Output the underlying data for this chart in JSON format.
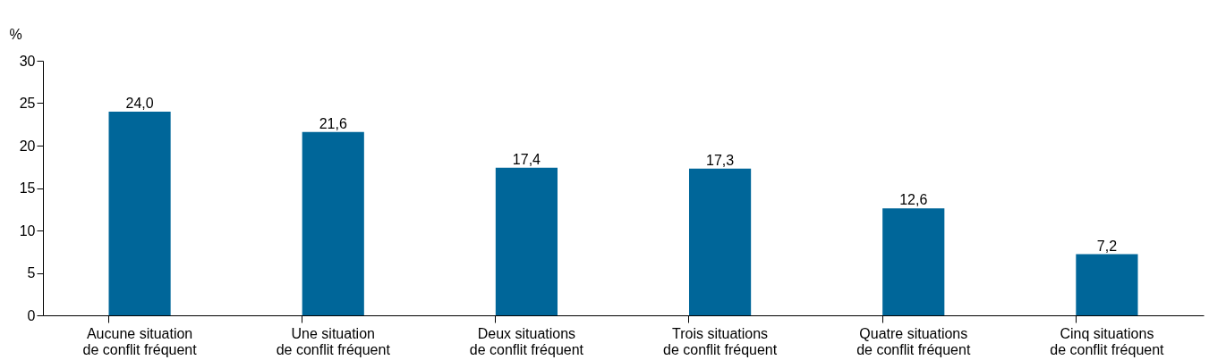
{
  "chart_data": {
    "type": "bar",
    "ylabel": "%",
    "categories": [
      "Aucune situation\nde conflit fréquent",
      "Une situation\nde conflit fréquent",
      "Deux situations\nde conflit fréquent",
      "Trois situations\nde conflit fréquent",
      "Quatre situations\nde conflit fréquent",
      "Cinq situations\nde conflit fréquent"
    ],
    "values": [
      24.0,
      21.6,
      17.4,
      17.3,
      12.6,
      7.2
    ],
    "value_labels": [
      "24,0",
      "21,6",
      "17,4",
      "17,3",
      "12,6",
      "7,2"
    ],
    "color": "#006699",
    "ylim": [
      0,
      30
    ],
    "yticks": [
      0,
      5,
      10,
      15,
      20,
      25,
      30
    ],
    "grid": false
  }
}
